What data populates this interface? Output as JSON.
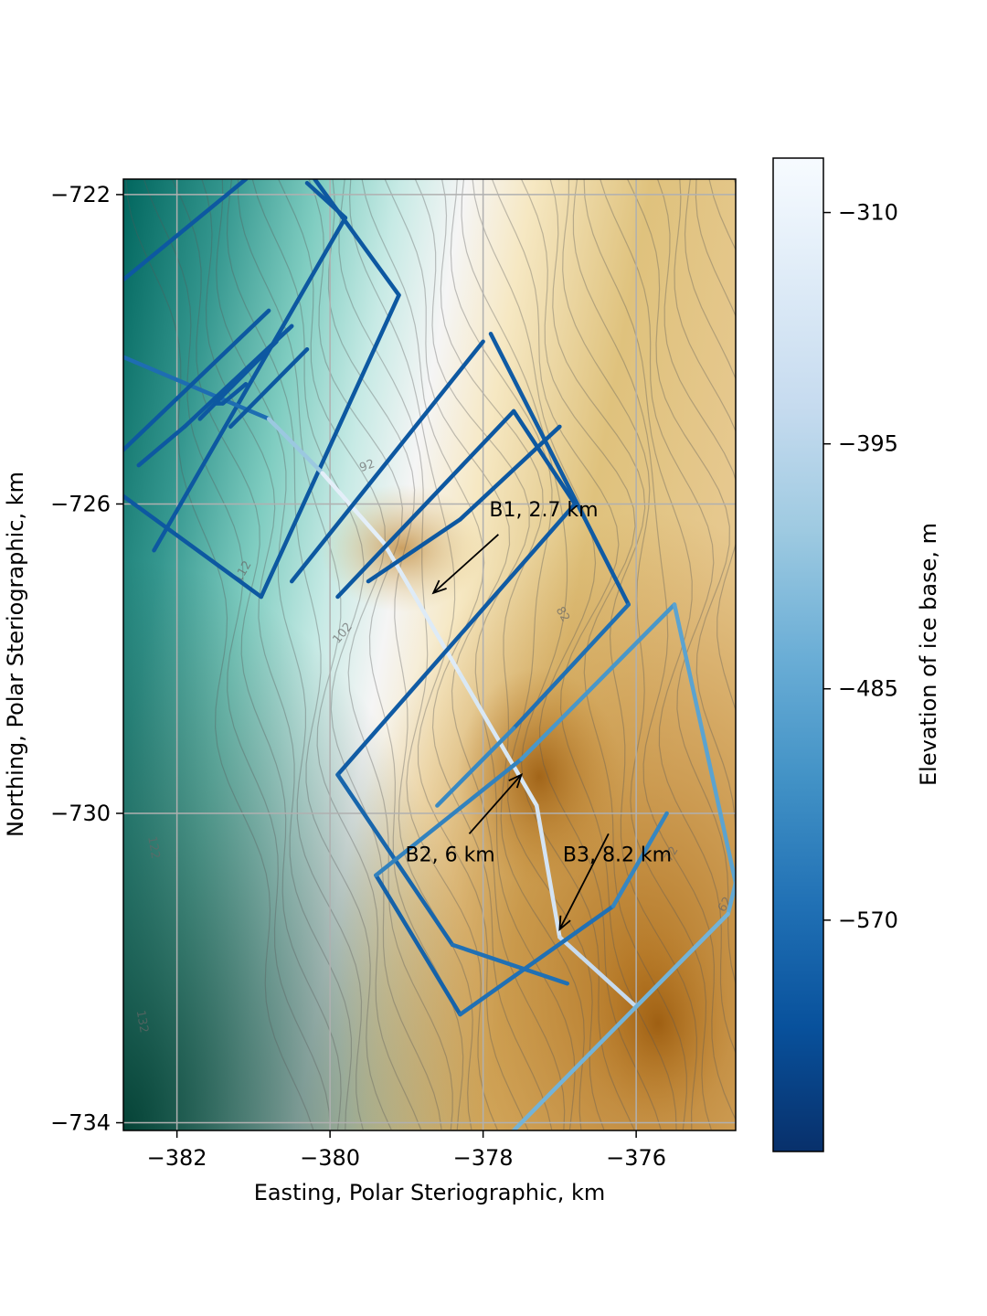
{
  "chart_data": {
    "type": "heatmap",
    "description_kind": "map of ice-base elevation with contours and survey flight lines",
    "xlabel": "Easting, Polar Steriographic, km",
    "ylabel": "Northing, Polar Steriographic, km",
    "xlim": [
      -382.7,
      -374.7
    ],
    "ylim": [
      -734.1,
      -721.8
    ],
    "x_ticks": [
      -382,
      -380,
      -378,
      -376
    ],
    "x_tick_labels": [
      "−382",
      "−380",
      "−378",
      "−376"
    ],
    "y_ticks": [
      -722,
      -726,
      -730,
      -734
    ],
    "y_tick_labels": [
      "−722",
      "−726",
      "−730",
      "−734"
    ],
    "grid": true,
    "background_colormap": [
      "#003c30",
      "#01665e",
      "#35978f",
      "#80cdc1",
      "#c7eae5",
      "#f5f5f5",
      "#f6e8c3",
      "#dfc27d",
      "#bf812d",
      "#8c510a"
    ],
    "contour_labels": [
      {
        "text": "92",
        "x": -379.5,
        "y": -725.55,
        "angle": -20
      },
      {
        "text": "112",
        "x": -381.1,
        "y": -726.9,
        "angle": -60
      },
      {
        "text": "102",
        "x": -379.8,
        "y": -727.7,
        "angle": -50
      },
      {
        "text": "82",
        "x": -377.0,
        "y": -727.45,
        "angle": 60
      },
      {
        "text": "122",
        "x": -382.35,
        "y": -730.45,
        "angle": 80
      },
      {
        "text": "132",
        "x": -382.5,
        "y": -732.7,
        "angle": 80
      },
      {
        "text": "72",
        "x": -375.5,
        "y": -730.55,
        "angle": -60
      },
      {
        "text": "62",
        "x": -374.8,
        "y": -731.2,
        "angle": -60
      }
    ],
    "colorbar": {
      "label": "Elevation of ice base, m",
      "range": [
        -655,
        -290
      ],
      "ticks": [
        -310,
        -395,
        -485,
        -570
      ],
      "tick_labels": [
        "−310",
        "−395",
        "−485",
        "−570"
      ],
      "colormap": [
        "#08306b",
        "#08519c",
        "#2171b5",
        "#4292c6",
        "#6baed6",
        "#9ecae1",
        "#c6dbef",
        "#deebf7",
        "#f7fbff"
      ]
    },
    "annotations": [
      {
        "text": "B1, 2.7 km",
        "text_x": -377.8,
        "text_y": -726.3,
        "arrow_to_x": -378.65,
        "arrow_to_y": -727.15
      },
      {
        "text": "B2, 6 km",
        "text_x": -378.3,
        "text_y": -730.5,
        "arrow_to_x": -377.5,
        "arrow_to_y": -729.5
      },
      {
        "text": "B3, 8.2 km",
        "text_x": -376.6,
        "text_y": -730.5,
        "arrow_to_x": -377.0,
        "arrow_to_y": -731.5
      }
    ],
    "flight_lines": [
      {
        "points": [
          [
            -380.2,
            -721.8
          ],
          [
            -379.1,
            -723.3
          ],
          [
            -380.9,
            -727.2
          ],
          [
            -382.7,
            -725.9
          ]
        ],
        "values": [
          -600,
          -600,
          -600,
          -600
        ]
      },
      {
        "points": [
          [
            -381.1,
            -721.8
          ],
          [
            -382.7,
            -723.1
          ]
        ],
        "values": [
          -600,
          -600
        ]
      },
      {
        "points": [
          [
            -380.3,
            -721.85
          ],
          [
            -379.8,
            -722.3
          ],
          [
            -382.3,
            -726.6
          ]
        ],
        "values": [
          -600,
          -600,
          -600
        ]
      },
      {
        "points": [
          [
            -382.7,
            -724.1
          ],
          [
            -380.8,
            -724.9
          ],
          [
            -380.1,
            -725.6
          ],
          [
            -379.3,
            -726.5
          ],
          [
            -378.3,
            -728.2
          ],
          [
            -377.3,
            -729.9
          ],
          [
            -377.0,
            -731.6
          ],
          [
            -376.0,
            -732.5
          ]
        ],
        "values": [
          -600,
          -540,
          -320,
          -330,
          -340,
          -350,
          -360,
          -400
        ]
      },
      {
        "points": [
          [
            -382.7,
            -725.3
          ],
          [
            -380.8,
            -723.5
          ]
        ],
        "values": [
          -600,
          -600
        ]
      },
      {
        "points": [
          [
            -382.5,
            -725.5
          ],
          [
            -381.9,
            -725.0
          ],
          [
            -380.5,
            -723.7
          ]
        ],
        "values": [
          -600,
          -600,
          -600
        ]
      },
      {
        "points": [
          [
            -381.3,
            -725.0
          ],
          [
            -380.3,
            -724.0
          ]
        ],
        "values": [
          -600,
          -600
        ]
      },
      {
        "points": [
          [
            -381.7,
            -724.9
          ],
          [
            -380.7,
            -723.9
          ]
        ],
        "values": [
          -600,
          -600
        ]
      },
      {
        "points": [
          [
            -381.1,
            -724.45
          ],
          [
            -381.4,
            -724.7
          ],
          [
            -381.5,
            -724.7
          ]
        ],
        "values": [
          -600,
          -600,
          -600
        ]
      },
      {
        "points": [
          [
            -380.5,
            -727.0
          ],
          [
            -378.0,
            -723.9
          ]
        ],
        "values": [
          -600,
          -600
        ]
      },
      {
        "points": [
          [
            -377.9,
            -723.8
          ],
          [
            -376.1,
            -727.3
          ],
          [
            -377.6,
            -728.9
          ],
          [
            -378.6,
            -729.9
          ]
        ],
        "values": [
          -600,
          -590,
          -540,
          -520
        ]
      },
      {
        "points": [
          [
            -379.9,
            -727.2
          ],
          [
            -377.6,
            -724.8
          ]
        ],
        "values": [
          -600,
          -600
        ]
      },
      {
        "points": [
          [
            -379.5,
            -727.0
          ],
          [
            -378.3,
            -726.2
          ],
          [
            -377.0,
            -725.0
          ]
        ],
        "values": [
          -600,
          -600,
          -600
        ]
      },
      {
        "points": [
          [
            -377.6,
            -724.8
          ],
          [
            -376.8,
            -726.0
          ],
          [
            -379.9,
            -729.5
          ],
          [
            -378.4,
            -731.7
          ],
          [
            -376.9,
            -732.2
          ]
        ],
        "values": [
          -600,
          -600,
          -590,
          -570,
          -560
        ]
      },
      {
        "points": [
          [
            -379.4,
            -730.8
          ],
          [
            -378.3,
            -732.6
          ],
          [
            -376.3,
            -731.2
          ],
          [
            -375.6,
            -730.0
          ]
        ],
        "values": [
          -590,
          -580,
          -550,
          -520
        ]
      },
      {
        "points": [
          [
            -379.4,
            -730.8
          ],
          [
            -377.5,
            -729.3
          ],
          [
            -375.5,
            -727.3
          ],
          [
            -374.7,
            -730.9
          ],
          [
            -374.8,
            -731.3
          ],
          [
            -376.0,
            -732.5
          ]
        ],
        "values": [
          -560,
          -520,
          -500,
          -480,
          -480,
          -480
        ]
      },
      {
        "points": [
          [
            -374.8,
            -731.3
          ],
          [
            -376.0,
            -732.5
          ],
          [
            -377.6,
            -734.1
          ]
        ],
        "values": [
          -470,
          -460,
          -470
        ]
      }
    ]
  }
}
